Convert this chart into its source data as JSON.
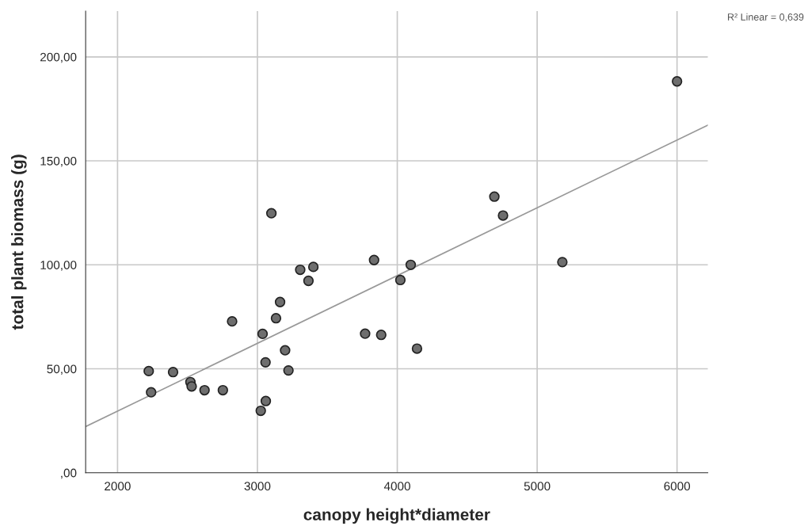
{
  "chart_data": {
    "type": "scatter",
    "xlabel": "canopy height*diameter",
    "ylabel": "total plant biomass (g)",
    "annotations": [
      "R² Linear = 0,639"
    ],
    "xlim": [
      1772,
      6220
    ],
    "xticks": [
      2000,
      3000,
      4000,
      5000,
      6000
    ],
    "ylim": [
      0,
      222
    ],
    "yticks": [
      {
        "value": 0,
        "label": ",00"
      },
      {
        "value": 50,
        "label": "50,00"
      },
      {
        "value": 100,
        "label": "100,00"
      },
      {
        "value": 150,
        "label": "150,00"
      },
      {
        "value": 200,
        "label": "200,00"
      }
    ],
    "grid": true,
    "legend": false,
    "series": [
      {
        "marker": "circle",
        "color": "#6e6e6e",
        "x": [
          2223,
          2240,
          2397,
          2521,
          2530,
          2622,
          2753,
          2819,
          3100,
          3037,
          3133,
          3162,
          3198,
          3058,
          3222,
          3060,
          3024,
          3306,
          3400,
          3365,
          3834,
          3770,
          3885,
          4096,
          4022,
          4141,
          4694,
          4756,
          5180,
          6000
        ],
        "values": [
          48.9,
          38.7,
          48.4,
          43.6,
          41.5,
          39.7,
          39.7,
          72.8,
          124.8,
          66.8,
          74.3,
          82.1,
          58.9,
          53.1,
          49.2,
          34.5,
          29.8,
          97.6,
          99.0,
          92.3,
          102.3,
          66.9,
          66.3,
          100.0,
          92.7,
          59.7,
          132.8,
          123.7,
          101.3,
          188.2
        ]
      },
      {
        "type": "line",
        "marker": "none",
        "color": "#999999",
        "x": [
          1772,
          6220
        ],
        "values": [
          22.2,
          167.2
        ]
      }
    ]
  }
}
